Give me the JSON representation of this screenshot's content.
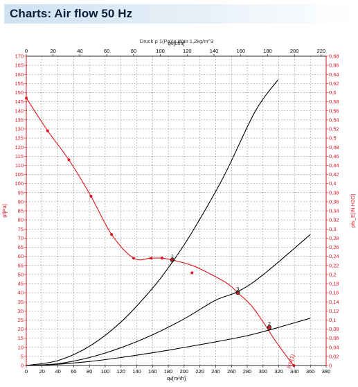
{
  "header": {
    "title": "Charts: Air flow 50 Hz"
  },
  "chart_data": {
    "type": "line",
    "title": "",
    "subtitle": "Druck ρ 1(Pa)/ρ Wair 1,2kg/m^3",
    "xlabel": "qv[m³/h]",
    "xlabel_top": "qv[cfm]",
    "ylabel": "pf[Pa]",
    "ylabel_right": "pfs_E[IN H2O]",
    "xlim": [
      0,
      380
    ],
    "xlim_top": [
      0,
      220
    ],
    "ylim": [
      0,
      170
    ],
    "ylim_right": [
      0,
      0.68
    ],
    "grid": true,
    "x_ticks": [
      "0",
      "20",
      "40",
      "60",
      "80",
      "100",
      "120",
      "140",
      "160",
      "180",
      "200",
      "220",
      "240",
      "260",
      "280",
      "300",
      "320",
      "340",
      "360",
      "380"
    ],
    "x_top_ticks": [
      "0",
      "20",
      "40",
      "60",
      "80",
      "100",
      "120",
      "140",
      "160",
      "180",
      "200",
      "220"
    ],
    "y_ticks": [
      "0",
      "5",
      "10",
      "15",
      "20",
      "25",
      "30",
      "35",
      "40",
      "45",
      "50",
      "55",
      "60",
      "65",
      "70",
      "75",
      "80",
      "85",
      "90",
      "95",
      "100",
      "105",
      "110",
      "115",
      "120",
      "125",
      "130",
      "135",
      "140",
      "145",
      "150",
      "155",
      "160",
      "165",
      "170"
    ],
    "y_right_ticks": [
      "0",
      "0,02",
      "0,04",
      "0,06",
      "0,08",
      "0,1",
      "0,12",
      "0,14",
      "0,16",
      "0,18",
      "0,2",
      "0,22",
      "0,24",
      "0,26",
      "0,28",
      "0,3",
      "0,32",
      "0,34",
      "0,36",
      "0,38",
      "0,4",
      "0,42",
      "0,44",
      "0,46",
      "0,48",
      "0,5",
      "0,52",
      "0,54",
      "0,56",
      "0,58",
      "0,6",
      "0,62",
      "0,64",
      "0,66",
      "0,68"
    ],
    "series": [
      {
        "color": "#e0141e",
        "x": [
          0,
          27,
          54,
          82,
          108,
          136,
          158,
          172,
          185,
          210,
          230,
          255,
          268,
          285,
          300,
          315,
          330,
          339
        ],
        "y": [
          147,
          129,
          113,
          93,
          72,
          59,
          59,
          59,
          58,
          55,
          51,
          45,
          40,
          33,
          24,
          14,
          5,
          0
        ],
        "markers_x": [
          0,
          27,
          54,
          82,
          108,
          136,
          158,
          172,
          185,
          210,
          268,
          308,
          339
        ],
        "markers_y": [
          147,
          129,
          113,
          93,
          72,
          59,
          59,
          59,
          58,
          51,
          40,
          21,
          0
        ]
      },
      {
        "color": "#000000",
        "x": [
          0,
          40,
          80,
          120,
          160,
          185,
          210,
          250,
          290,
          319
        ],
        "y": [
          0,
          2.7,
          10.6,
          23.9,
          42.5,
          56.8,
          73.2,
          103.7,
          139.6,
          157
        ]
      },
      {
        "color": "#000000",
        "x": [
          0,
          40,
          80,
          120,
          160,
          200,
          240,
          268,
          300,
          360
        ],
        "y": [
          0,
          1.0,
          4.4,
          9.8,
          16.9,
          25.6,
          35.9,
          40.6,
          49.8,
          72
        ]
      },
      {
        "color": "#000000",
        "x": [
          0,
          40,
          80,
          120,
          160,
          200,
          240,
          280,
          308,
          360
        ],
        "y": [
          0,
          0.7,
          2.2,
          4.4,
          7.0,
          9.9,
          13.0,
          16.4,
          19.5,
          26
        ]
      }
    ],
    "annotations": [
      {
        "text": "1",
        "x": 185,
        "y": 58
      },
      {
        "text": "3",
        "x": 268,
        "y": 40
      },
      {
        "text": "2",
        "x": 308,
        "y": 21
      }
    ],
    "red_end_labels": [
      "β,H(1)",
      "β,H(1)"
    ]
  }
}
